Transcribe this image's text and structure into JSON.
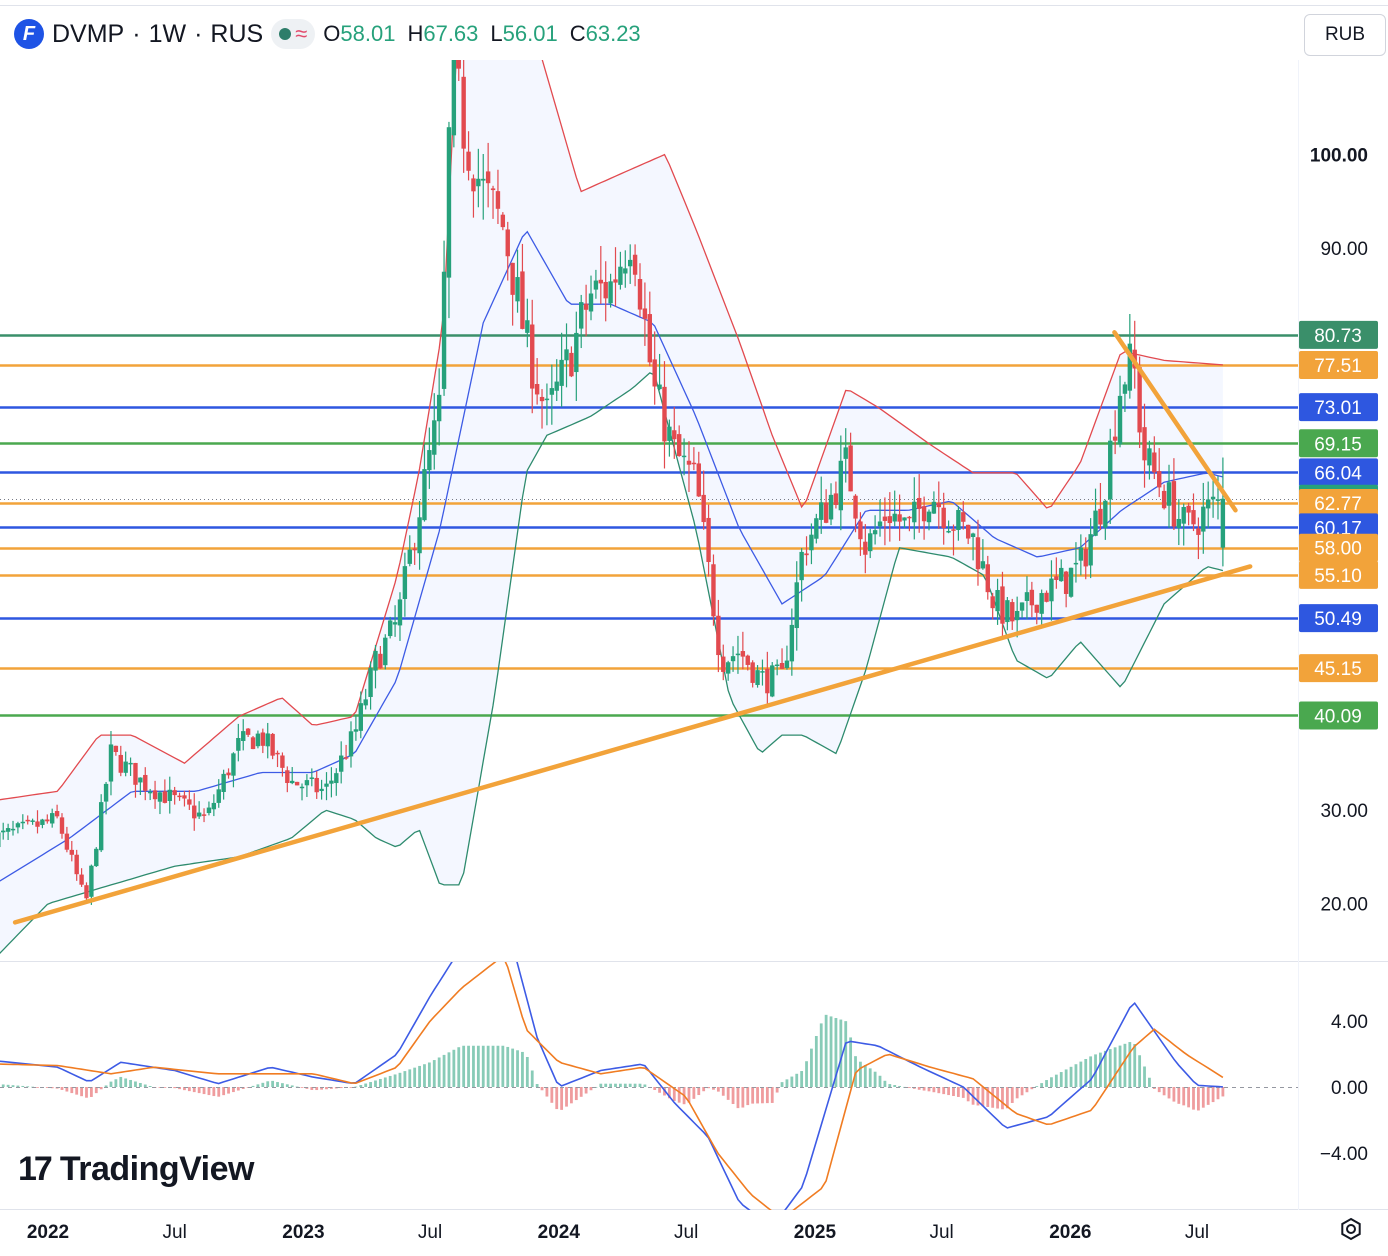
{
  "header": {
    "logo_letter": "F",
    "symbol": "DVMP",
    "separator": "·",
    "interval": "1W",
    "exchange": "RUS",
    "ohlc": [
      {
        "k": "O",
        "v": "58.01"
      },
      {
        "k": "H",
        "v": "67.63"
      },
      {
        "k": "L",
        "v": "56.01"
      },
      {
        "k": "C",
        "v": "63.23"
      }
    ]
  },
  "currency": "RUB",
  "brand": "TradingView",
  "colors": {
    "up": "#26a17b",
    "down": "#e24a4f",
    "bb_upper": "#e24a4f",
    "bb_basis": "#3d5be5",
    "bb_lower": "#2e8b6e",
    "trend": "#f2a33a",
    "macd": "#3d5be5",
    "signal": "#f07c22",
    "level_green": "#3a9a4a",
    "level_orange": "#f2a33a",
    "level_blue": "#2e57e0",
    "level_teal": "#3a8f6a"
  },
  "chart_data": {
    "type": "candlestick",
    "timeframe": "1W",
    "price_axis_ticks": [
      "100.00",
      "90.00",
      "30.00",
      "20.00"
    ],
    "price_axis_ticks_values": [
      100,
      90,
      30,
      20
    ],
    "macd_axis_ticks": [
      "4.00",
      "0.00",
      "−4.00"
    ],
    "macd_axis_ticks_values": [
      4,
      0,
      -4
    ],
    "x_ticks": [
      {
        "label": "2022",
        "bold": true,
        "date": "2022-01-01"
      },
      {
        "label": "Jul",
        "bold": false,
        "date": "2022-07-01"
      },
      {
        "label": "2023",
        "bold": true,
        "date": "2023-01-01"
      },
      {
        "label": "Jul",
        "bold": false,
        "date": "2023-07-01"
      },
      {
        "label": "2024",
        "bold": true,
        "date": "2024-01-01"
      },
      {
        "label": "Jul",
        "bold": false,
        "date": "2024-07-01"
      },
      {
        "label": "2025",
        "bold": true,
        "date": "2025-01-01"
      },
      {
        "label": "Jul",
        "bold": false,
        "date": "2025-07-01"
      },
      {
        "label": "2026",
        "bold": true,
        "date": "2026-01-01"
      },
      {
        "label": "Jul",
        "bold": false,
        "date": "2026-07-01"
      }
    ],
    "levels": [
      {
        "value": 80.73,
        "label": "80.73",
        "color": "#3a8f6a"
      },
      {
        "value": 77.51,
        "label": "77.51",
        "color": "#f2a33a"
      },
      {
        "value": 73.01,
        "label": "73.01",
        "color": "#2e57e0"
      },
      {
        "value": 69.15,
        "label": "69.15",
        "color": "#4aa84f"
      },
      {
        "value": 66.04,
        "label": "66.04",
        "color": "#2e57e0"
      },
      {
        "value": 63.23,
        "label": "63.23",
        "color": "#26a17b",
        "current": true
      },
      {
        "value": 62.77,
        "label": "62.77",
        "color": "#f2a33a"
      },
      {
        "value": 60.17,
        "label": "60.17",
        "color": "#2e57e0"
      },
      {
        "value": 58.0,
        "label": "58.00",
        "color": "#f2a33a"
      },
      {
        "value": 55.1,
        "label": "55.10",
        "color": "#f2a33a"
      },
      {
        "value": 50.49,
        "label": "50.49",
        "color": "#2e57e0"
      },
      {
        "value": 45.15,
        "label": "45.15",
        "color": "#f2a33a"
      },
      {
        "value": 40.09,
        "label": "40.09",
        "color": "#4aa84f"
      }
    ],
    "price_anchors": [
      [
        "2021-10-15",
        27
      ],
      [
        "2021-12-01",
        28
      ],
      [
        "2022-01-15",
        29
      ],
      [
        "2022-02-24",
        20
      ],
      [
        "2022-04-01",
        36
      ],
      [
        "2022-05-15",
        33
      ],
      [
        "2022-07-01",
        31
      ],
      [
        "2022-08-15",
        29
      ],
      [
        "2022-10-01",
        37
      ],
      [
        "2022-11-01",
        38
      ],
      [
        "2022-12-15",
        33
      ],
      [
        "2023-02-01",
        32
      ],
      [
        "2023-03-15",
        38
      ],
      [
        "2023-04-15",
        46
      ],
      [
        "2023-05-15",
        50
      ],
      [
        "2023-06-15",
        62
      ],
      [
        "2023-07-15",
        73
      ],
      [
        "2023-08-01",
        110
      ],
      [
        "2023-08-20",
        102
      ],
      [
        "2023-09-15",
        96
      ],
      [
        "2023-10-15",
        92
      ],
      [
        "2023-11-15",
        80
      ],
      [
        "2023-12-15",
        72
      ],
      [
        "2024-01-15",
        78
      ],
      [
        "2024-02-15",
        85
      ],
      [
        "2024-03-15",
        86
      ],
      [
        "2024-04-15",
        92
      ],
      [
        "2024-05-15",
        75
      ],
      [
        "2024-06-15",
        68
      ],
      [
        "2024-07-15",
        65
      ],
      [
        "2024-08-20",
        46
      ],
      [
        "2024-09-15",
        47
      ],
      [
        "2024-10-15",
        44
      ],
      [
        "2024-11-15",
        44
      ],
      [
        "2024-12-15",
        58
      ],
      [
        "2025-01-15",
        62
      ],
      [
        "2025-02-15",
        67
      ],
      [
        "2025-03-15",
        58
      ],
      [
        "2025-04-15",
        62
      ],
      [
        "2025-05-15",
        60
      ],
      [
        "2025-06-15",
        64
      ],
      [
        "2025-07-15",
        61
      ],
      [
        "2025-08-15",
        59
      ],
      [
        "2025-09-15",
        52
      ],
      [
        "2025-10-15",
        50
      ],
      [
        "2025-11-15",
        53
      ],
      [
        "2025-12-15",
        54
      ],
      [
        "2026-01-15",
        56
      ],
      [
        "2026-02-15",
        63
      ],
      [
        "2026-03-15",
        76
      ],
      [
        "2026-04-01",
        78
      ],
      [
        "2026-04-15",
        68
      ],
      [
        "2026-05-15",
        64
      ],
      [
        "2026-06-15",
        60
      ],
      [
        "2026-07-15",
        62
      ],
      [
        "2026-08-10",
        63.23
      ]
    ],
    "bb_upper_anchors": [
      [
        "2021-10-15",
        31
      ],
      [
        "2022-01-15",
        32
      ],
      [
        "2022-03-15",
        38
      ],
      [
        "2022-05-01",
        38
      ],
      [
        "2022-07-15",
        35
      ],
      [
        "2022-10-01",
        40
      ],
      [
        "2022-12-01",
        42
      ],
      [
        "2023-01-15",
        39
      ],
      [
        "2023-03-15",
        40
      ],
      [
        "2023-05-15",
        55
      ],
      [
        "2023-06-15",
        66
      ],
      [
        "2023-07-20",
        82
      ],
      [
        "2023-08-10",
        115
      ],
      [
        "2023-10-01",
        120
      ],
      [
        "2023-12-01",
        112
      ],
      [
        "2024-02-01",
        96
      ],
      [
        "2024-04-01",
        98
      ],
      [
        "2024-06-01",
        100
      ],
      [
        "2024-07-15",
        92
      ],
      [
        "2024-09-15",
        80
      ],
      [
        "2024-11-01",
        70
      ],
      [
        "2024-12-15",
        62
      ],
      [
        "2025-02-15",
        75
      ],
      [
        "2025-04-01",
        73
      ],
      [
        "2025-06-15",
        69
      ],
      [
        "2025-08-15",
        66
      ],
      [
        "2025-10-15",
        66
      ],
      [
        "2025-12-01",
        62
      ],
      [
        "2026-01-15",
        67
      ],
      [
        "2026-03-15",
        79
      ],
      [
        "2026-05-15",
        78
      ],
      [
        "2026-08-10",
        77.5
      ]
    ],
    "bb_basis_anchors": [
      [
        "2021-10-15",
        22
      ],
      [
        "2022-02-01",
        27
      ],
      [
        "2022-05-01",
        32
      ],
      [
        "2022-08-01",
        32
      ],
      [
        "2022-11-01",
        34
      ],
      [
        "2023-01-15",
        34
      ],
      [
        "2023-03-15",
        36
      ],
      [
        "2023-05-15",
        44
      ],
      [
        "2023-07-15",
        60
      ],
      [
        "2023-09-15",
        82
      ],
      [
        "2023-11-15",
        92
      ],
      [
        "2024-01-15",
        84
      ],
      [
        "2024-03-15",
        84
      ],
      [
        "2024-05-15",
        82
      ],
      [
        "2024-07-15",
        72
      ],
      [
        "2024-09-15",
        60
      ],
      [
        "2024-11-15",
        52
      ],
      [
        "2025-01-15",
        55
      ],
      [
        "2025-03-15",
        62
      ],
      [
        "2025-05-15",
        62
      ],
      [
        "2025-07-15",
        63
      ],
      [
        "2025-09-15",
        59
      ],
      [
        "2025-11-15",
        57
      ],
      [
        "2026-01-15",
        58
      ],
      [
        "2026-03-15",
        62
      ],
      [
        "2026-05-15",
        65
      ],
      [
        "2026-07-15",
        66
      ],
      [
        "2026-08-10",
        65.5
      ]
    ],
    "bb_lower_anchors": [
      [
        "2021-10-15",
        14
      ],
      [
        "2022-01-01",
        20
      ],
      [
        "2022-04-01",
        22
      ],
      [
        "2022-07-01",
        24
      ],
      [
        "2022-10-01",
        25
      ],
      [
        "2022-12-15",
        27
      ],
      [
        "2023-02-01",
        30
      ],
      [
        "2023-03-15",
        29
      ],
      [
        "2023-04-15",
        27
      ],
      [
        "2023-05-15",
        26
      ],
      [
        "2023-06-15",
        28
      ],
      [
        "2023-07-15",
        22
      ],
      [
        "2023-08-15",
        22
      ],
      [
        "2023-10-01",
        42
      ],
      [
        "2023-11-15",
        66
      ],
      [
        "2023-12-15",
        70
      ],
      [
        "2024-02-15",
        72
      ],
      [
        "2024-04-15",
        75
      ],
      [
        "2024-05-15",
        77
      ],
      [
        "2024-07-15",
        60
      ],
      [
        "2024-09-01",
        42
      ],
      [
        "2024-10-15",
        36
      ],
      [
        "2024-11-15",
        38
      ],
      [
        "2024-12-15",
        38
      ],
      [
        "2025-02-01",
        36
      ],
      [
        "2025-03-15",
        45
      ],
      [
        "2025-05-01",
        58
      ],
      [
        "2025-07-15",
        57
      ],
      [
        "2025-09-01",
        55
      ],
      [
        "2025-10-15",
        46
      ],
      [
        "2025-12-01",
        44
      ],
      [
        "2026-01-15",
        48
      ],
      [
        "2026-03-15",
        43
      ],
      [
        "2026-05-15",
        52
      ],
      [
        "2026-07-15",
        56
      ],
      [
        "2026-08-10",
        55.5
      ]
    ],
    "trendlines": [
      {
        "from": [
          "2021-11-15",
          18
        ],
        "to": [
          "2026-09-15",
          56
        ],
        "color": "#f2a33a"
      },
      {
        "from": [
          "2026-03-05",
          81
        ],
        "to": [
          "2026-08-25",
          62
        ],
        "color": "#f2a33a"
      }
    ],
    "macd_anchors": [
      [
        "2021-10-15",
        1.6
      ],
      [
        "2022-01-15",
        1.2
      ],
      [
        "2022-03-01",
        0.3
      ],
      [
        "2022-04-15",
        1.5
      ],
      [
        "2022-07-01",
        1.0
      ],
      [
        "2022-09-01",
        0.2
      ],
      [
        "2022-11-15",
        1.2
      ],
      [
        "2023-01-15",
        0.6
      ],
      [
        "2023-03-15",
        0.2
      ],
      [
        "2023-05-15",
        2.0
      ],
      [
        "2023-07-01",
        5.5
      ],
      [
        "2023-08-15",
        8.5
      ],
      [
        "2023-10-15",
        10.5
      ],
      [
        "2023-12-01",
        3.0
      ],
      [
        "2024-01-01",
        0.0
      ],
      [
        "2024-03-01",
        1.0
      ],
      [
        "2024-05-01",
        1.4
      ],
      [
        "2024-06-15",
        -1.0
      ],
      [
        "2024-08-01",
        -3.0
      ],
      [
        "2024-09-15",
        -7.0
      ],
      [
        "2024-11-01",
        -8.5
      ],
      [
        "2024-12-15",
        -6.0
      ],
      [
        "2025-02-15",
        2.8
      ],
      [
        "2025-04-01",
        2.5
      ],
      [
        "2025-06-01",
        1.2
      ],
      [
        "2025-08-01",
        0.0
      ],
      [
        "2025-10-01",
        -2.5
      ],
      [
        "2025-12-01",
        -1.8
      ],
      [
        "2026-02-01",
        0.5
      ],
      [
        "2026-04-01",
        5.2
      ],
      [
        "2026-06-01",
        1.5
      ],
      [
        "2026-07-01",
        0.1
      ],
      [
        "2026-08-10",
        0.0
      ]
    ],
    "signal_anchors": [
      [
        "2021-10-15",
        1.4
      ],
      [
        "2022-01-15",
        1.3
      ],
      [
        "2022-04-01",
        0.8
      ],
      [
        "2022-06-01",
        1.2
      ],
      [
        "2022-09-01",
        0.8
      ],
      [
        "2022-11-15",
        0.8
      ],
      [
        "2023-01-15",
        0.8
      ],
      [
        "2023-03-15",
        0.2
      ],
      [
        "2023-05-15",
        1.2
      ],
      [
        "2023-07-01",
        4.0
      ],
      [
        "2023-08-15",
        6.0
      ],
      [
        "2023-10-15",
        8.0
      ],
      [
        "2023-11-15",
        3.5
      ],
      [
        "2024-01-01",
        1.5
      ],
      [
        "2024-03-01",
        0.8
      ],
      [
        "2024-05-01",
        1.2
      ],
      [
        "2024-07-01",
        -0.6
      ],
      [
        "2024-08-15",
        -4.0
      ],
      [
        "2024-10-01",
        -6.5
      ],
      [
        "2024-11-15",
        -8.0
      ],
      [
        "2025-01-15",
        -6.0
      ],
      [
        "2025-03-01",
        1.0
      ],
      [
        "2025-04-15",
        2.0
      ],
      [
        "2025-06-15",
        1.2
      ],
      [
        "2025-08-15",
        0.5
      ],
      [
        "2025-10-15",
        -1.6
      ],
      [
        "2025-12-01",
        -2.3
      ],
      [
        "2026-02-01",
        -1.4
      ],
      [
        "2026-04-01",
        2.4
      ],
      [
        "2026-05-01",
        3.5
      ],
      [
        "2026-06-15",
        2.0
      ],
      [
        "2026-08-10",
        0.5
      ]
    ]
  }
}
